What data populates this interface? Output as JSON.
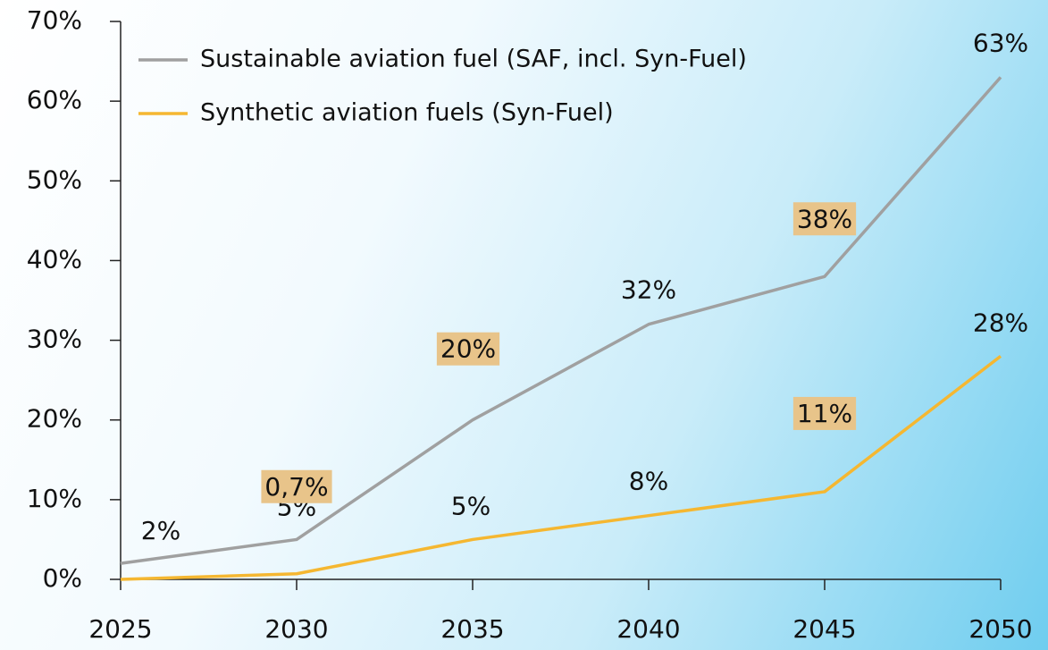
{
  "chart_data": {
    "type": "line",
    "x": [
      2025,
      2030,
      2035,
      2040,
      2045,
      2050
    ],
    "xlim": [
      2025,
      2050
    ],
    "xticks": [
      2025,
      2030,
      2035,
      2040,
      2045,
      2050
    ],
    "ylim": [
      0,
      70
    ],
    "yticks": [
      {
        "value": 0,
        "label": "0%"
      },
      {
        "value": 10,
        "label": "10%"
      },
      {
        "value": 20,
        "label": "20%"
      },
      {
        "value": 30,
        "label": "30%"
      },
      {
        "value": 40,
        "label": "40%"
      },
      {
        "value": 50,
        "label": "50%"
      },
      {
        "value": 60,
        "label": "60%"
      },
      {
        "value": 70,
        "label": "70%"
      }
    ],
    "legend": "upper left",
    "series": [
      {
        "name": "Sustainable aviation fuel (SAF, incl. Syn-Fuel)",
        "color": "#a0a0a0",
        "values": [
          2,
          5,
          20,
          32,
          38,
          63
        ],
        "value_labels": [
          "2%",
          "5%",
          "20%",
          "32%",
          "38%",
          "63%"
        ],
        "highlight": [
          false,
          false,
          true,
          false,
          true,
          false
        ]
      },
      {
        "name": "Synthetic aviation fuels (Syn-Fuel)",
        "color": "#f5b731",
        "values": [
          0,
          0.7,
          5,
          8,
          11,
          28
        ],
        "value_labels": [
          null,
          "0,7%",
          "5%",
          "8%",
          "11%",
          "28%"
        ],
        "highlight": [
          false,
          true,
          false,
          false,
          true,
          false
        ]
      }
    ]
  }
}
